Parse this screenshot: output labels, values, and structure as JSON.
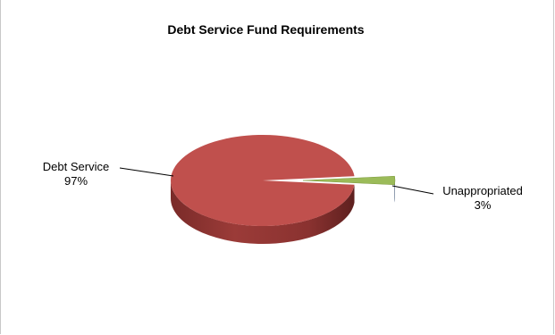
{
  "chart_data": {
    "type": "pie",
    "style": "3d-exploded",
    "title": "Debt Service Fund Requirements",
    "slices": [
      {
        "label": "Debt Service",
        "value": 97,
        "display": "97%",
        "color": "#c0504d",
        "side_color": "#8e3432"
      },
      {
        "label": "Unappropriated",
        "value": 3,
        "display": "3%",
        "color": "#9bbb59",
        "side_color": "#1f3a5f"
      }
    ],
    "legend": "none",
    "grid": false
  }
}
